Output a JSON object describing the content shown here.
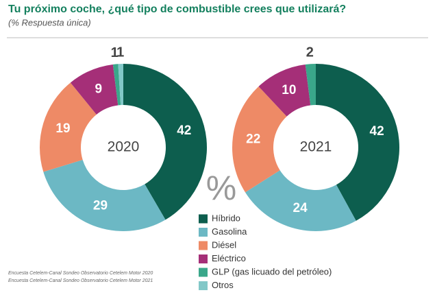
{
  "title": "Tu próximo coche, ¿qué tipo de combustible crees que utilizará?",
  "subtitle": "(% Respuesta única)",
  "unit": "%",
  "sources": [
    "Encuesta Cetelem-Canal Sondeo Observatorio Cetelem Motor 2020",
    "Encuesta Cetelem-Canal Sondeo Observatorio Cetelem Motor 2021"
  ],
  "chart_data": [
    {
      "type": "pie",
      "donut": true,
      "label": "2020",
      "categories": [
        "Híbrido",
        "Gasolina",
        "Diésel",
        "Eléctrico",
        "GLP (gas licuado del petróleo)",
        "Otros"
      ],
      "values": [
        42,
        29,
        19,
        9,
        1,
        1
      ],
      "colors": [
        "#0d5e4e",
        "#6cb8c4",
        "#ee8a66",
        "#a52f78",
        "#3aa78a",
        "#82c8c8"
      ]
    },
    {
      "type": "pie",
      "donut": true,
      "label": "2021",
      "categories": [
        "Híbrido",
        "Gasolina",
        "Diésel",
        "Eléctrico",
        "GLP (gas licuado del petróleo)"
      ],
      "values": [
        42,
        24,
        22,
        10,
        2
      ],
      "colors": [
        "#0d5e4e",
        "#6cb8c4",
        "#ee8a66",
        "#a52f78",
        "#3aa78a"
      ]
    }
  ]
}
